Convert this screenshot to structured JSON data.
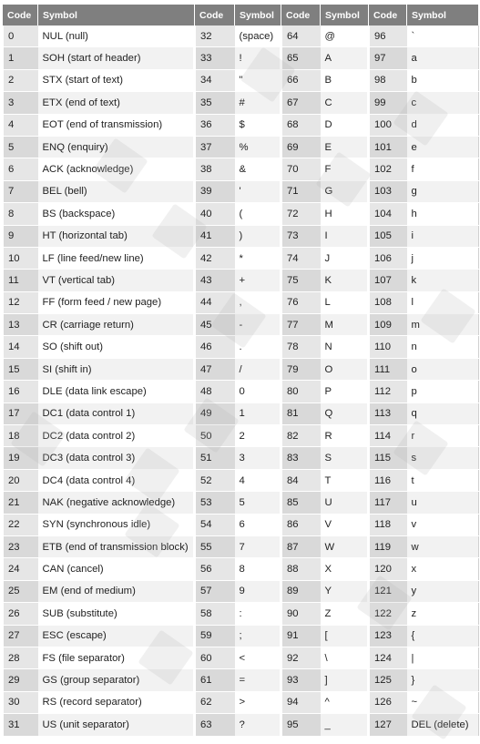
{
  "headers": {
    "code": "Code",
    "symbol": "Symbol"
  },
  "colors": {
    "header_bg": "#7f7f7f",
    "header_text": "#ffffff",
    "code_bg": "#e6e6e6",
    "row_alt_bg": "#f2f2f2"
  },
  "rows": [
    {
      "c1": "0",
      "s1": "NUL (null)",
      "c2": "32",
      "s2": "(space)",
      "c3": "64",
      "s3": "@",
      "c4": "96",
      "s4": "`"
    },
    {
      "c1": "1",
      "s1": "SOH (start of header)",
      "c2": "33",
      "s2": "!",
      "c3": "65",
      "s3": "A",
      "c4": "97",
      "s4": "a"
    },
    {
      "c1": "2",
      "s1": "STX (start of text)",
      "c2": "34",
      "s2": "\"",
      "c3": "66",
      "s3": "B",
      "c4": "98",
      "s4": "b"
    },
    {
      "c1": "3",
      "s1": "ETX (end of text)",
      "c2": "35",
      "s2": "#",
      "c3": "67",
      "s3": "C",
      "c4": "99",
      "s4": "c"
    },
    {
      "c1": "4",
      "s1": "EOT (end of transmission)",
      "c2": "36",
      "s2": "$",
      "c3": "68",
      "s3": "D",
      "c4": "100",
      "s4": "d"
    },
    {
      "c1": "5",
      "s1": "ENQ (enquiry)",
      "c2": "37",
      "s2": "%",
      "c3": "69",
      "s3": "E",
      "c4": "101",
      "s4": "e"
    },
    {
      "c1": "6",
      "s1": "ACK (acknowledge)",
      "c2": "38",
      "s2": "&",
      "c3": "70",
      "s3": "F",
      "c4": "102",
      "s4": "f"
    },
    {
      "c1": "7",
      "s1": "BEL (bell)",
      "c2": "39",
      "s2": "'",
      "c3": "71",
      "s3": "G",
      "c4": "103",
      "s4": "g"
    },
    {
      "c1": "8",
      "s1": "BS (backspace)",
      "c2": "40",
      "s2": "(",
      "c3": "72",
      "s3": "H",
      "c4": "104",
      "s4": "h"
    },
    {
      "c1": "9",
      "s1": "HT (horizontal tab)",
      "c2": "41",
      "s2": ")",
      "c3": "73",
      "s3": "I",
      "c4": "105",
      "s4": "i"
    },
    {
      "c1": "10",
      "s1": "LF (line feed/new line)",
      "c2": "42",
      "s2": "*",
      "c3": "74",
      "s3": "J",
      "c4": "106",
      "s4": "j"
    },
    {
      "c1": "11",
      "s1": "VT (vertical tab)",
      "c2": "43",
      "s2": "+",
      "c3": "75",
      "s3": "K",
      "c4": "107",
      "s4": "k"
    },
    {
      "c1": "12",
      "s1": "FF (form feed / new page)",
      "c2": "44",
      "s2": ",",
      "c3": "76",
      "s3": "L",
      "c4": "108",
      "s4": "l"
    },
    {
      "c1": "13",
      "s1": "CR (carriage return)",
      "c2": "45",
      "s2": "-",
      "c3": "77",
      "s3": "M",
      "c4": "109",
      "s4": "m"
    },
    {
      "c1": "14",
      "s1": "SO (shift out)",
      "c2": "46",
      "s2": ".",
      "c3": "78",
      "s3": "N",
      "c4": "110",
      "s4": "n"
    },
    {
      "c1": "15",
      "s1": "SI (shift in)",
      "c2": "47",
      "s2": "/",
      "c3": "79",
      "s3": "O",
      "c4": "111",
      "s4": "o"
    },
    {
      "c1": "16",
      "s1": "DLE (data link escape)",
      "c2": "48",
      "s2": "0",
      "c3": "80",
      "s3": "P",
      "c4": "112",
      "s4": "p"
    },
    {
      "c1": "17",
      "s1": "DC1 (data control 1)",
      "c2": "49",
      "s2": "1",
      "c3": "81",
      "s3": "Q",
      "c4": "113",
      "s4": "q"
    },
    {
      "c1": "18",
      "s1": "DC2 (data control 2)",
      "c2": "50",
      "s2": "2",
      "c3": "82",
      "s3": "R",
      "c4": "114",
      "s4": "r"
    },
    {
      "c1": "19",
      "s1": "DC3 (data control 3)",
      "c2": "51",
      "s2": "3",
      "c3": "83",
      "s3": "S",
      "c4": "115",
      "s4": "s"
    },
    {
      "c1": "20",
      "s1": "DC4 (data control 4)",
      "c2": "52",
      "s2": "4",
      "c3": "84",
      "s3": "T",
      "c4": "116",
      "s4": "t"
    },
    {
      "c1": "21",
      "s1": "NAK (negative acknowledge)",
      "c2": "53",
      "s2": "5",
      "c3": "85",
      "s3": "U",
      "c4": "117",
      "s4": "u"
    },
    {
      "c1": "22",
      "s1": "SYN (synchronous idle)",
      "c2": "54",
      "s2": "6",
      "c3": "86",
      "s3": "V",
      "c4": "118",
      "s4": "v"
    },
    {
      "c1": "23",
      "s1": "ETB (end of transmission block)",
      "c2": "55",
      "s2": "7",
      "c3": "87",
      "s3": "W",
      "c4": "119",
      "s4": "w"
    },
    {
      "c1": "24",
      "s1": "CAN (cancel)",
      "c2": "56",
      "s2": "8",
      "c3": "88",
      "s3": "X",
      "c4": "120",
      "s4": "x"
    },
    {
      "c1": "25",
      "s1": "EM (end of medium)",
      "c2": "57",
      "s2": "9",
      "c3": "89",
      "s3": "Y",
      "c4": "121",
      "s4": "y"
    },
    {
      "c1": "26",
      "s1": "SUB (substitute)",
      "c2": "58",
      "s2": ":",
      "c3": "90",
      "s3": "Z",
      "c4": "122",
      "s4": "z"
    },
    {
      "c1": "27",
      "s1": "ESC (escape)",
      "c2": "59",
      "s2": ";",
      "c3": "91",
      "s3": "[",
      "c4": "123",
      "s4": "{"
    },
    {
      "c1": "28",
      "s1": "FS (file separator)",
      "c2": "60",
      "s2": "<",
      "c3": "92",
      "s3": "\\",
      "c4": "124",
      "s4": "|"
    },
    {
      "c1": "29",
      "s1": "GS (group separator)",
      "c2": "61",
      "s2": "=",
      "c3": "93",
      "s3": "]",
      "c4": "125",
      "s4": "}"
    },
    {
      "c1": "30",
      "s1": "RS (record separator)",
      "c2": "62",
      "s2": ">",
      "c3": "94",
      "s3": "^",
      "c4": "126",
      "s4": "~"
    },
    {
      "c1": "31",
      "s1": "US (unit separator)",
      "c2": "63",
      "s2": "?",
      "c3": "95",
      "s3": "_",
      "c4": "127",
      "s4": "DEL (delete)"
    }
  ]
}
